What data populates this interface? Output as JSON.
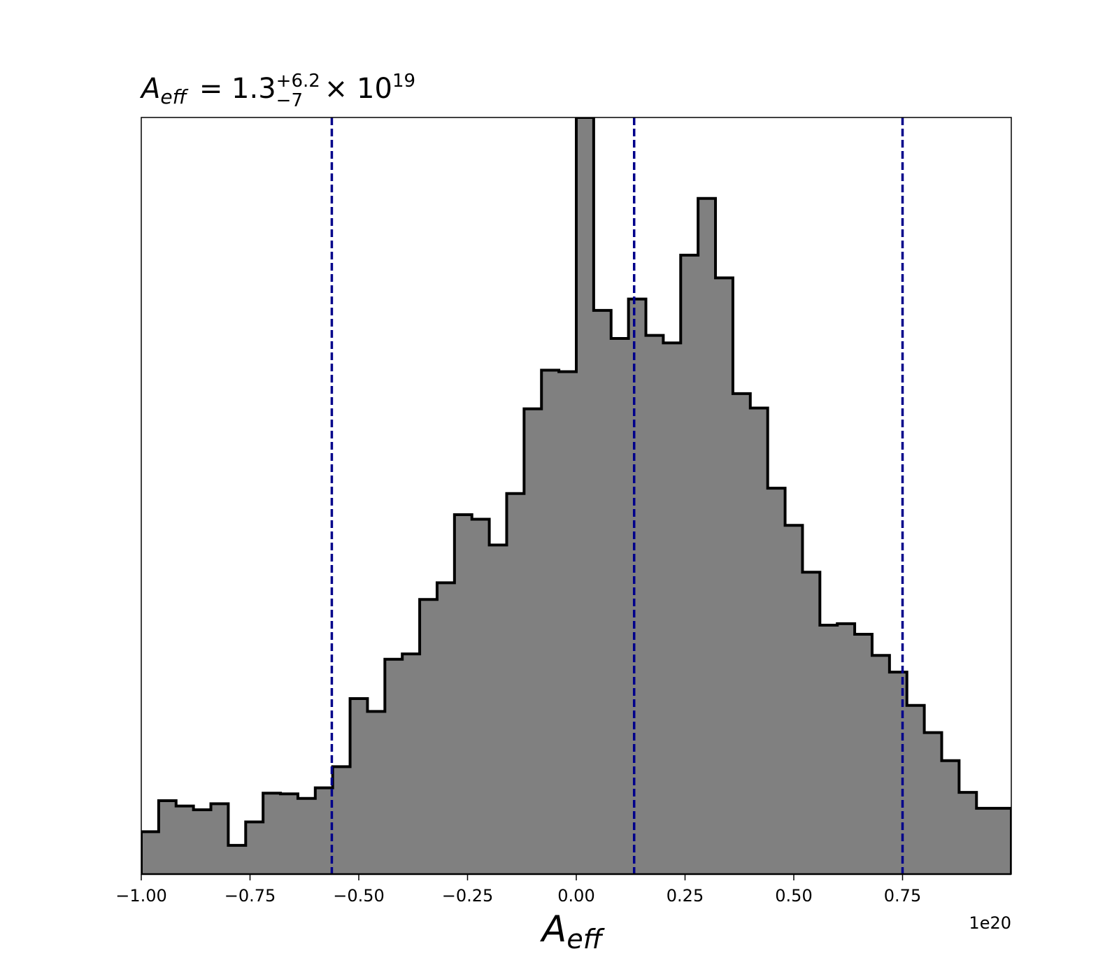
{
  "chart_data": {
    "type": "histogram",
    "title": {
      "symbol": "A",
      "symbol_sub": "eff",
      "equals": "= 1.3",
      "sup": "+6.2",
      "sub": "−7",
      "times": "× 10",
      "exp": "19"
    },
    "xlabel": {
      "symbol": "A",
      "sub": "eff"
    },
    "x_offset_label": "1e20",
    "xlim": [
      -1.0,
      1.0
    ],
    "ylim": [
      0,
      1
    ],
    "x_ticks": [
      -1.0,
      -0.75,
      -0.5,
      -0.25,
      0.0,
      0.25,
      0.5,
      0.75
    ],
    "x_tick_labels": [
      "−1.00",
      "−0.75",
      "−0.50",
      "−0.25",
      "0.00",
      "0.25",
      "0.50",
      "0.75"
    ],
    "bin_start": -1.0,
    "bin_width": 0.04,
    "counts": [
      0.056,
      0.097,
      0.09,
      0.085,
      0.093,
      0.038,
      0.069,
      0.107,
      0.106,
      0.1,
      0.114,
      0.142,
      0.232,
      0.215,
      0.284,
      0.291,
      0.363,
      0.385,
      0.475,
      0.469,
      0.435,
      0.503,
      0.615,
      0.666,
      0.664,
      1.0,
      0.745,
      0.708,
      0.76,
      0.712,
      0.702,
      0.818,
      0.893,
      0.788,
      0.635,
      0.616,
      0.51,
      0.461,
      0.399,
      0.329,
      0.331,
      0.317,
      0.289,
      0.267,
      0.223,
      0.187,
      0.15,
      0.108,
      0.087,
      0.087
    ],
    "fill_color": "#808080",
    "edge_color": "#000000",
    "vlines": [
      -0.562,
      0.133,
      0.75
    ],
    "vline_color": "#00008b",
    "vline_style": "dashed",
    "grid": false,
    "y_ticks_visible": false
  }
}
